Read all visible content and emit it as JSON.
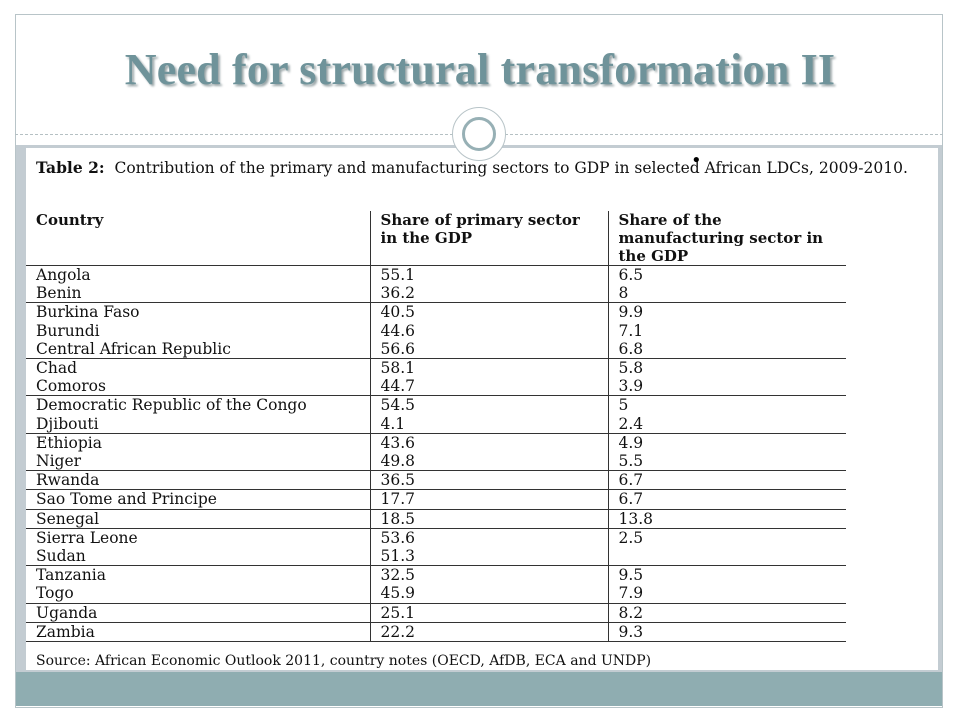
{
  "slide": {
    "title": "Need for structural transformation II",
    "bullet": "•"
  },
  "table": {
    "caption_label": "Table 2:",
    "caption_text": "Contribution of the primary and manufacturing sectors to GDP in selected African LDCs, 2009-2010.",
    "headers": [
      "Country",
      "Share of primary sector in the GDP",
      "Share of the manufacturing sector in the GDP"
    ],
    "rows": [
      {
        "country": "Angola",
        "primary": "55.1",
        "manufacturing": "6.5"
      },
      {
        "country": "Benin",
        "primary": "36.2",
        "manufacturing": "8"
      },
      {
        "country": "Burkina Faso",
        "primary": "40.5",
        "manufacturing": "9.9"
      },
      {
        "country": "Burundi",
        "primary": "44.6",
        "manufacturing": "7.1"
      },
      {
        "country": "Central African Republic",
        "primary": "56.6",
        "manufacturing": "6.8"
      },
      {
        "country": "Chad",
        "primary": "58.1",
        "manufacturing": "5.8"
      },
      {
        "country": "Comoros",
        "primary": "44.7",
        "manufacturing": "3.9"
      },
      {
        "country": "Democratic Republic of the Congo",
        "primary": "54.5",
        "manufacturing": "5"
      },
      {
        "country": "Djibouti",
        "primary": "4.1",
        "manufacturing": "2.4"
      },
      {
        "country": "Ethiopia",
        "primary": "43.6",
        "manufacturing": "4.9"
      },
      {
        "country": "Niger",
        "primary": "49.8",
        "manufacturing": "5.5"
      },
      {
        "country": "Rwanda",
        "primary": "36.5",
        "manufacturing": "6.7"
      },
      {
        "country": "Sao Tome and Principe",
        "primary": "17.7",
        "manufacturing": "6.7"
      },
      {
        "country": "Senegal",
        "primary": "18.5",
        "manufacturing": "13.8"
      },
      {
        "country": "Sierra Leone",
        "primary": "53.6",
        "manufacturing": "2.5"
      },
      {
        "country": "Sudan",
        "primary": "51.3",
        "manufacturing": ""
      },
      {
        "country": "Tanzania",
        "primary": "32.5",
        "manufacturing": "9.5"
      },
      {
        "country": "Togo",
        "primary": "45.9",
        "manufacturing": "7.9"
      },
      {
        "country": "Uganda",
        "primary": "25.1",
        "manufacturing": "8.2"
      },
      {
        "country": "Zambia",
        "primary": "22.2",
        "manufacturing": "9.3"
      }
    ],
    "source": "Source: African Economic Outlook 2011, country notes (OECD, AfDB, ECA and UNDP)"
  }
}
